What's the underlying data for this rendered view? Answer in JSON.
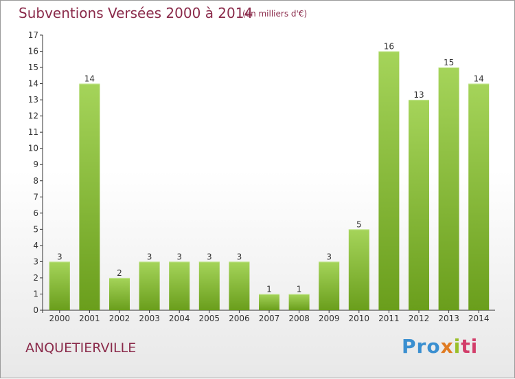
{
  "colors": {
    "title": "#8a2a4a",
    "bar_light": "#a5d45a",
    "bar_dark": "#6a9e1c",
    "axis": "#333333",
    "grid": "#bfbfbf"
  },
  "chart_data": {
    "type": "bar",
    "title": "Subventions Versées 2000 à 2014",
    "subtitle": "(en milliers d'€)",
    "categories": [
      "2000",
      "2001",
      "2002",
      "2003",
      "2004",
      "2005",
      "2006",
      "2007",
      "2008",
      "2009",
      "2010",
      "2011",
      "2012",
      "2013",
      "2014"
    ],
    "values": [
      3,
      14,
      2,
      3,
      3,
      3,
      3,
      1,
      1,
      3,
      5,
      16,
      13,
      15,
      14
    ],
    "ylim": [
      0,
      17
    ],
    "yticks": [
      0,
      1,
      2,
      3,
      4,
      5,
      6,
      7,
      8,
      9,
      10,
      11,
      12,
      13,
      14,
      15,
      16,
      17
    ],
    "grid": false,
    "data_labels": true
  },
  "commune": "ANQUETIERVILLE",
  "logo": {
    "text": "Proxiti",
    "p1": "Pro",
    "p2": "x",
    "p3": "i",
    "p4": "ti"
  }
}
